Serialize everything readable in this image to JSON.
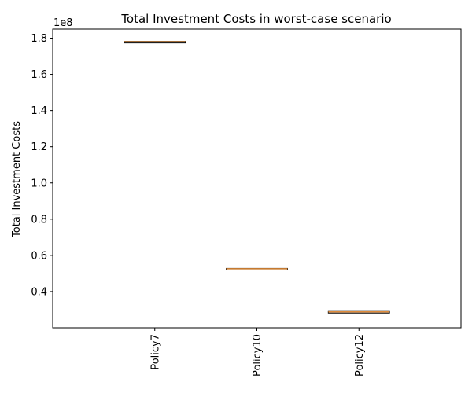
{
  "chart_data": {
    "type": "box",
    "title": "Total Investment Costs in worst-case scenario",
    "ylabel": "Total Investment Costs",
    "xlabel": "",
    "y_offset_label": "1e8",
    "y_scale": 100000000,
    "ylim": [
      20000000,
      185000000
    ],
    "yticks": [
      40000000,
      60000000,
      80000000,
      100000000,
      120000000,
      140000000,
      160000000,
      180000000
    ],
    "ytick_labels": [
      "0.4",
      "0.6",
      "0.8",
      "1.0",
      "1.2",
      "1.4",
      "1.6",
      "1.8"
    ],
    "categories": [
      "Policy7",
      "Policy10",
      "Policy12"
    ],
    "series": [
      {
        "values": [
          {
            "min": 178000000,
            "q1": 178000000,
            "median": 178000000,
            "q3": 178000000,
            "max": 178000000
          },
          {
            "min": 52600000,
            "q1": 52600000,
            "median": 52600000,
            "q3": 52600000,
            "max": 52600000
          },
          {
            "min": 28800000,
            "q1": 28800000,
            "median": 28800000,
            "q3": 28800000,
            "max": 28800000
          }
        ]
      }
    ],
    "grid": false,
    "colors": {
      "box": "#000000",
      "median": "#e08b3a",
      "axis": "#000000"
    }
  }
}
